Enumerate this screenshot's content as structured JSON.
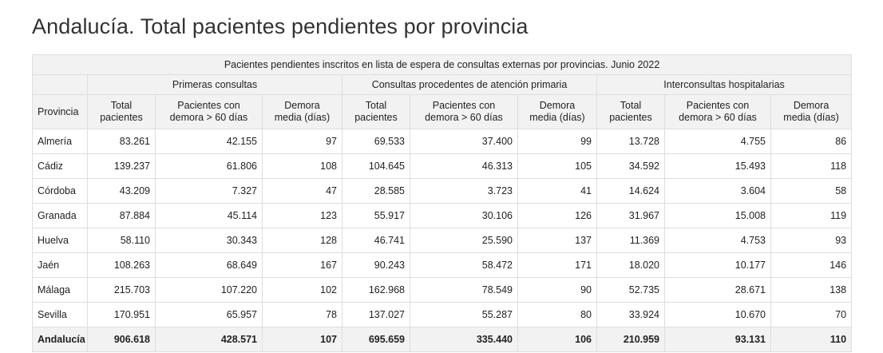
{
  "page": {
    "title": "Andalucía. Total pacientes pendientes por provincia"
  },
  "table": {
    "caption": "Pacientes pendientes inscritos en lista de espera de consultas externas por provincias. Junio 2022",
    "groups": [
      "Primeras consultas",
      "Consultas procedentes de atención primaria",
      "Interconsultas hospitalarias"
    ],
    "columns": {
      "provincia": "Provincia",
      "total_l1": "Total",
      "total_l2": "pacientes",
      "demora60_l1": "Pacientes con",
      "demora60_l2": "demora > 60 días",
      "media_l1": "Demora",
      "media_l2": "media (días)"
    },
    "rows": [
      [
        "Almería",
        "83.261",
        "42.155",
        "97",
        "69.533",
        "37.400",
        "99",
        "13.728",
        "4.755",
        "86"
      ],
      [
        "Cádiz",
        "139.237",
        "61.806",
        "108",
        "104.645",
        "46.313",
        "105",
        "34.592",
        "15.493",
        "118"
      ],
      [
        "Córdoba",
        "43.209",
        "7.327",
        "47",
        "28.585",
        "3.723",
        "41",
        "14.624",
        "3.604",
        "58"
      ],
      [
        "Granada",
        "87.884",
        "45.114",
        "123",
        "55.917",
        "30.106",
        "126",
        "31.967",
        "15.008",
        "119"
      ],
      [
        "Huelva",
        "58.110",
        "30.343",
        "128",
        "46.741",
        "25.590",
        "137",
        "11.369",
        "4.753",
        "93"
      ],
      [
        "Jaén",
        "108.263",
        "68.649",
        "167",
        "90.243",
        "58.472",
        "171",
        "18.020",
        "10.177",
        "146"
      ],
      [
        "Málaga",
        "215.703",
        "107.220",
        "102",
        "162.968",
        "78.549",
        "90",
        "52.735",
        "28.671",
        "138"
      ],
      [
        "Sevilla",
        "170.951",
        "65.957",
        "78",
        "137.027",
        "55.287",
        "80",
        "33.924",
        "10.670",
        "70"
      ]
    ],
    "total": [
      "Andalucía",
      "906.618",
      "428.571",
      "107",
      "695.659",
      "335.440",
      "106",
      "210.959",
      "93.131",
      "110"
    ]
  }
}
